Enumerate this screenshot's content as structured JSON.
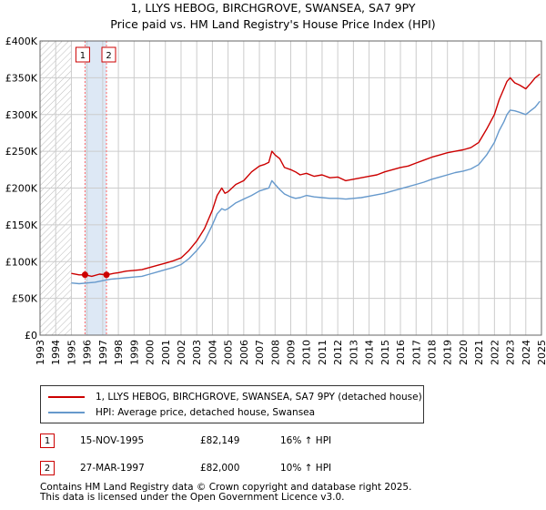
{
  "header": {
    "title_line1": "1, LLYS HEBOG, BIRCHGROVE, SWANSEA, SA7 9PY",
    "title_line2": "Price paid vs. HM Land Registry's House Price Index (HPI)"
  },
  "colors": {
    "property_line": "#cc0000",
    "hpi_line": "#6699cc",
    "grid": "#cccccc",
    "hatch": "#bbbbbb",
    "highlight": "#dde8f5",
    "marker_line": "#ff6666"
  },
  "chart_data": {
    "type": "line",
    "title": "Price paid vs. HM Land Registry's House Price Index (HPI)",
    "xlabel": "",
    "ylabel": "",
    "xlim": [
      1993,
      2025
    ],
    "ylim": [
      0,
      400000
    ],
    "x_ticks": [
      "1993",
      "1994",
      "1995",
      "1996",
      "1997",
      "1998",
      "1999",
      "2000",
      "2001",
      "2002",
      "2003",
      "2004",
      "2005",
      "2006",
      "2007",
      "2008",
      "2009",
      "2010",
      "2011",
      "2012",
      "2013",
      "2014",
      "2015",
      "2016",
      "2017",
      "2018",
      "2019",
      "2020",
      "2021",
      "2022",
      "2023",
      "2024",
      "2025"
    ],
    "y_ticks": [
      {
        "value": 0,
        "label": "£0"
      },
      {
        "value": 50000,
        "label": "£50K"
      },
      {
        "value": 100000,
        "label": "£100K"
      },
      {
        "value": 150000,
        "label": "£150K"
      },
      {
        "value": 200000,
        "label": "£200K"
      },
      {
        "value": 250000,
        "label": "£250K"
      },
      {
        "value": 300000,
        "label": "£300K"
      },
      {
        "value": 350000,
        "label": "£350K"
      },
      {
        "value": 400000,
        "label": "£400K"
      }
    ],
    "no_data_before": 1995.0,
    "highlight_range": [
      1995.87,
      1997.24
    ],
    "series": [
      {
        "name": "1, LLYS HEBOG, BIRCHGROVE, SWANSEA, SA7 9PY (detached house)",
        "x": [
          1995.0,
          1995.5,
          1995.87,
          1996.3,
          1996.8,
          1997.24,
          1997.7,
          1998.0,
          1998.5,
          1999.0,
          1999.5,
          2000.0,
          2000.5,
          2001.0,
          2001.5,
          2002.0,
          2002.5,
          2003.0,
          2003.5,
          2004.0,
          2004.3,
          2004.6,
          2004.8,
          2005.0,
          2005.5,
          2006.0,
          2006.5,
          2007.0,
          2007.3,
          2007.6,
          2007.8,
          2008.0,
          2008.3,
          2008.6,
          2009.0,
          2009.3,
          2009.6,
          2010.0,
          2010.5,
          2011.0,
          2011.5,
          2012.0,
          2012.5,
          2013.0,
          2013.5,
          2014.0,
          2014.5,
          2015.0,
          2015.5,
          2016.0,
          2016.5,
          2017.0,
          2017.5,
          2018.0,
          2018.5,
          2019.0,
          2019.5,
          2020.0,
          2020.5,
          2021.0,
          2021.5,
          2022.0,
          2022.3,
          2022.6,
          2022.8,
          2023.0,
          2023.3,
          2023.6,
          2024.0,
          2024.3,
          2024.6,
          2024.9
        ],
        "values": [
          84000,
          82000,
          82149,
          80000,
          83000,
          82000,
          84000,
          85000,
          87000,
          88000,
          89000,
          92000,
          95000,
          98000,
          101000,
          105000,
          115000,
          128000,
          145000,
          170000,
          190000,
          200000,
          193000,
          195000,
          205000,
          210000,
          222000,
          230000,
          232000,
          235000,
          250000,
          245000,
          240000,
          228000,
          225000,
          222000,
          218000,
          220000,
          216000,
          218000,
          214000,
          215000,
          210000,
          212000,
          214000,
          216000,
          218000,
          222000,
          225000,
          228000,
          230000,
          234000,
          238000,
          242000,
          245000,
          248000,
          250000,
          252000,
          255000,
          262000,
          280000,
          300000,
          320000,
          335000,
          345000,
          350000,
          343000,
          340000,
          335000,
          342000,
          350000,
          355000
        ]
      },
      {
        "name": "HPI: Average price, detached house, Swansea",
        "x": [
          1995.0,
          1995.5,
          1996.0,
          1996.5,
          1997.0,
          1997.5,
          1998.0,
          1998.5,
          1999.0,
          1999.5,
          2000.0,
          2000.5,
          2001.0,
          2001.5,
          2002.0,
          2002.5,
          2003.0,
          2003.5,
          2004.0,
          2004.3,
          2004.6,
          2004.8,
          2005.0,
          2005.5,
          2006.0,
          2006.5,
          2007.0,
          2007.3,
          2007.6,
          2007.8,
          2008.0,
          2008.3,
          2008.6,
          2009.0,
          2009.3,
          2009.6,
          2010.0,
          2010.5,
          2011.0,
          2011.5,
          2012.0,
          2012.5,
          2013.0,
          2013.5,
          2014.0,
          2014.5,
          2015.0,
          2015.5,
          2016.0,
          2016.5,
          2017.0,
          2017.5,
          2018.0,
          2018.5,
          2019.0,
          2019.5,
          2020.0,
          2020.5,
          2021.0,
          2021.5,
          2022.0,
          2022.3,
          2022.6,
          2022.8,
          2023.0,
          2023.3,
          2023.6,
          2024.0,
          2024.3,
          2024.6,
          2024.9
        ],
        "values": [
          71000,
          70000,
          71000,
          72000,
          74000,
          76000,
          77000,
          78000,
          79000,
          80000,
          83000,
          86000,
          89000,
          92000,
          96000,
          104000,
          115000,
          128000,
          150000,
          165000,
          172000,
          170000,
          172000,
          180000,
          185000,
          190000,
          196000,
          198000,
          200000,
          210000,
          205000,
          198000,
          192000,
          188000,
          186000,
          187000,
          190000,
          188000,
          187000,
          186000,
          186000,
          185000,
          186000,
          187000,
          189000,
          191000,
          193000,
          196000,
          199000,
          202000,
          205000,
          208000,
          212000,
          215000,
          218000,
          221000,
          223000,
          226000,
          232000,
          245000,
          262000,
          278000,
          290000,
          300000,
          306000,
          305000,
          303000,
          300000,
          305000,
          310000,
          318000
        ]
      }
    ],
    "sales": [
      {
        "num": "1",
        "date": "15-NOV-1995",
        "x": 1995.87,
        "price": 82149,
        "price_label": "£82,149",
        "hpi": "16% ↑ HPI"
      },
      {
        "num": "2",
        "date": "27-MAR-1997",
        "x": 1997.24,
        "price": 82000,
        "price_label": "£82,000",
        "hpi": "10% ↑ HPI"
      }
    ]
  },
  "legend": {
    "items": [
      {
        "label": "1, LLYS HEBOG, BIRCHGROVE, SWANSEA, SA7 9PY (detached house)"
      },
      {
        "label": "HPI: Average price, detached house, Swansea"
      }
    ]
  },
  "footer": {
    "line1": "Contains HM Land Registry data © Crown copyright and database right 2025.",
    "line2": "This data is licensed under the Open Government Licence v3.0."
  }
}
